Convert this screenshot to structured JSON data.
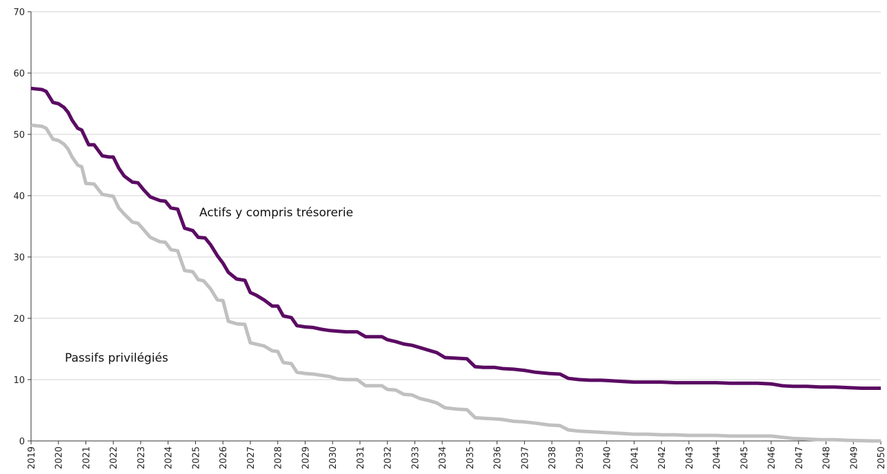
{
  "chart_data": {
    "type": "line",
    "title": "",
    "xlabel": "",
    "ylabel": "",
    "xlim": [
      2019,
      2050
    ],
    "ylim": [
      0,
      70
    ],
    "yticks": [
      0,
      10,
      20,
      30,
      40,
      50,
      60,
      70
    ],
    "xticks": [
      "2019",
      "2020",
      "2021",
      "2022",
      "2023",
      "2024",
      "2025",
      "2026",
      "2027",
      "2028",
      "2029",
      "2030",
      "2031",
      "2032",
      "2033",
      "2034",
      "2035",
      "2036",
      "2037",
      "2038",
      "2039",
      "2040",
      "2041",
      "2042",
      "2043",
      "2044",
      "2045",
      "2046",
      "2047",
      "2048",
      "2049",
      "2050"
    ],
    "grid": "horizontal",
    "legend": "none",
    "annotations": [
      {
        "text": "Actifs y compris trésorerie",
        "series": 0
      },
      {
        "text": "Passifs privilégiés",
        "series": 1
      }
    ],
    "series": [
      {
        "name": "Actifs y compris trésorerie",
        "color": "#5b0b63",
        "x": [
          2019.0,
          2019.4,
          2019.55,
          2019.8,
          2020.0,
          2020.2,
          2020.35,
          2020.5,
          2020.7,
          2020.85,
          2021.1,
          2021.3,
          2021.6,
          2021.85,
          2022.0,
          2022.2,
          2022.4,
          2022.7,
          2022.9,
          2023.1,
          2023.35,
          2023.7,
          2023.9,
          2024.1,
          2024.35,
          2024.6,
          2024.9,
          2025.1,
          2025.35,
          2025.55,
          2025.8,
          2026.0,
          2026.2,
          2026.5,
          2026.8,
          2027.0,
          2027.2,
          2027.5,
          2027.8,
          2028.0,
          2028.2,
          2028.5,
          2028.7,
          2029.0,
          2029.3,
          2029.6,
          2029.9,
          2030.2,
          2030.5,
          2030.9,
          2031.2,
          2031.5,
          2031.8,
          2032.0,
          2032.3,
          2032.6,
          2032.9,
          2033.2,
          2033.5,
          2033.8,
          2034.1,
          2034.5,
          2034.9,
          2035.2,
          2035.5,
          2035.9,
          2036.2,
          2036.6,
          2037.0,
          2037.4,
          2037.9,
          2038.3,
          2038.6,
          2039.0,
          2039.4,
          2039.8,
          2040.2,
          2040.6,
          2041.0,
          2041.5,
          2042.0,
          2042.5,
          2043.0,
          2043.5,
          2044.0,
          2044.5,
          2045.0,
          2045.5,
          2046.0,
          2046.4,
          2046.8,
          2047.3,
          2047.8,
          2048.3,
          2048.8,
          2049.3,
          2049.7,
          2050.0
        ],
        "y": [
          57.5,
          57.3,
          57.0,
          55.2,
          55.0,
          54.4,
          53.6,
          52.3,
          51.0,
          50.7,
          48.3,
          48.3,
          46.5,
          46.3,
          46.3,
          44.5,
          43.2,
          42.2,
          42.1,
          41.0,
          39.8,
          39.2,
          39.1,
          38.0,
          37.8,
          34.7,
          34.3,
          33.2,
          33.1,
          32.0,
          30.2,
          29.0,
          27.5,
          26.4,
          26.2,
          24.2,
          23.8,
          23.0,
          22.0,
          22.0,
          20.4,
          20.1,
          18.8,
          18.6,
          18.5,
          18.2,
          18.0,
          17.9,
          17.8,
          17.8,
          17.0,
          17.0,
          17.0,
          16.5,
          16.2,
          15.8,
          15.6,
          15.2,
          14.8,
          14.4,
          13.6,
          13.5,
          13.4,
          12.1,
          12.0,
          12.0,
          11.8,
          11.7,
          11.5,
          11.2,
          11.0,
          10.9,
          10.2,
          10.0,
          9.9,
          9.9,
          9.8,
          9.7,
          9.6,
          9.6,
          9.6,
          9.5,
          9.5,
          9.5,
          9.5,
          9.4,
          9.4,
          9.4,
          9.3,
          9.0,
          8.9,
          8.9,
          8.8,
          8.8,
          8.7,
          8.6,
          8.6,
          8.6
        ]
      },
      {
        "name": "Passifs privilégiés",
        "color": "#c0c0c0",
        "x": [
          2019.0,
          2019.4,
          2019.55,
          2019.8,
          2020.0,
          2020.2,
          2020.35,
          2020.5,
          2020.7,
          2020.85,
          2021.0,
          2021.3,
          2021.6,
          2021.85,
          2022.0,
          2022.2,
          2022.4,
          2022.7,
          2022.9,
          2023.1,
          2023.35,
          2023.7,
          2023.9,
          2024.1,
          2024.35,
          2024.6,
          2024.9,
          2025.1,
          2025.3,
          2025.55,
          2025.8,
          2026.0,
          2026.2,
          2026.5,
          2026.8,
          2027.0,
          2027.2,
          2027.5,
          2027.8,
          2028.0,
          2028.2,
          2028.5,
          2028.7,
          2029.0,
          2029.3,
          2029.6,
          2029.9,
          2030.2,
          2030.5,
          2030.9,
          2031.2,
          2031.5,
          2031.8,
          2032.0,
          2032.3,
          2032.6,
          2032.9,
          2033.2,
          2033.5,
          2033.8,
          2034.1,
          2034.5,
          2034.9,
          2035.2,
          2035.5,
          2035.9,
          2036.2,
          2036.6,
          2037.0,
          2037.4,
          2037.9,
          2038.3,
          2038.6,
          2039.0,
          2039.4,
          2039.8,
          2040.2,
          2040.6,
          2041.0,
          2041.5,
          2042.0,
          2042.5,
          2043.0,
          2043.5,
          2044.0,
          2044.5,
          2045.0,
          2045.5,
          2046.0,
          2046.4,
          2046.8,
          2047.3,
          2047.8,
          2048.3,
          2048.8,
          2049.3,
          2049.7,
          2050.0
        ],
        "y": [
          51.5,
          51.3,
          51.0,
          49.2,
          49.0,
          48.4,
          47.6,
          46.3,
          45.0,
          44.7,
          42.0,
          41.9,
          40.2,
          40.0,
          39.9,
          38.0,
          37.0,
          35.7,
          35.5,
          34.5,
          33.2,
          32.5,
          32.4,
          31.2,
          31.0,
          27.8,
          27.6,
          26.3,
          26.1,
          24.8,
          23.0,
          22.9,
          19.5,
          19.1,
          19.0,
          16.0,
          15.8,
          15.5,
          14.7,
          14.6,
          12.8,
          12.6,
          11.2,
          11.0,
          10.9,
          10.7,
          10.5,
          10.1,
          10.0,
          10.0,
          9.0,
          9.0,
          9.0,
          8.4,
          8.3,
          7.6,
          7.5,
          6.9,
          6.6,
          6.2,
          5.4,
          5.2,
          5.1,
          3.8,
          3.7,
          3.6,
          3.5,
          3.2,
          3.1,
          2.9,
          2.6,
          2.5,
          1.8,
          1.6,
          1.5,
          1.4,
          1.3,
          1.2,
          1.1,
          1.1,
          1.0,
          1.0,
          0.9,
          0.9,
          0.9,
          0.8,
          0.8,
          0.8,
          0.8,
          0.6,
          0.4,
          0.3,
          0.2,
          0.2,
          0.1,
          0.05,
          0.0,
          0.0
        ]
      }
    ]
  }
}
